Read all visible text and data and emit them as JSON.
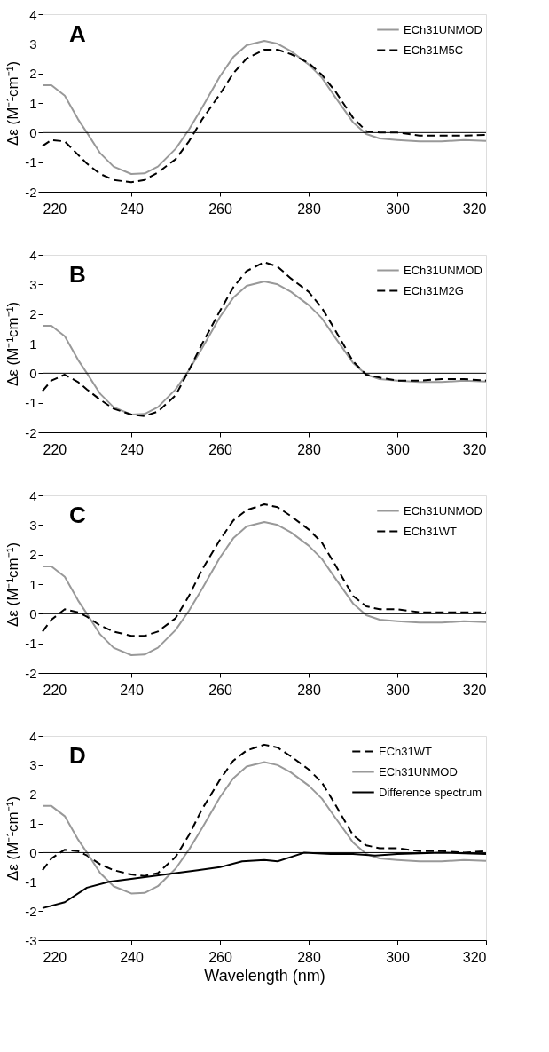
{
  "chart_data": [
    {
      "type": "line",
      "title": "A",
      "ylabel": "Δε (M⁻¹cm⁻¹)",
      "xlim": [
        220,
        320
      ],
      "xticks": [
        220,
        240,
        260,
        280,
        300,
        320
      ],
      "ylim": [
        -2,
        4
      ],
      "yticks": [
        -2,
        -1,
        0,
        1,
        2,
        3,
        4
      ],
      "grid": false,
      "legend": "top right",
      "ref_lines": [
        {
          "axis": "y",
          "value": 0,
          "color": "#000000"
        }
      ],
      "x": [
        220,
        222,
        225,
        228,
        230,
        233,
        236,
        240,
        243,
        246,
        250,
        253,
        256,
        260,
        263,
        266,
        270,
        273,
        276,
        280,
        283,
        286,
        290,
        293,
        296,
        300,
        305,
        310,
        315,
        320
      ],
      "series": [
        {
          "name": "ECh31UNMOD",
          "color": "#999999",
          "line_style": "solid",
          "values": [
            1.6,
            1.6,
            1.25,
            0.45,
            0.0,
            -0.7,
            -1.15,
            -1.4,
            -1.38,
            -1.15,
            -0.55,
            0.1,
            0.85,
            1.9,
            2.55,
            2.95,
            3.1,
            3.0,
            2.75,
            2.3,
            1.85,
            1.2,
            0.35,
            -0.05,
            -0.2,
            -0.25,
            -0.3,
            -0.3,
            -0.25,
            -0.28
          ]
        },
        {
          "name": "ECh31M5C",
          "color": "#000000",
          "line_style": "dashed",
          "values": [
            -0.45,
            -0.25,
            -0.3,
            -0.75,
            -1.05,
            -1.4,
            -1.6,
            -1.68,
            -1.6,
            -1.35,
            -0.9,
            -0.3,
            0.45,
            1.3,
            2.0,
            2.5,
            2.8,
            2.8,
            2.65,
            2.35,
            1.95,
            1.4,
            0.5,
            0.05,
            0.0,
            0.0,
            -0.1,
            -0.1,
            -0.1,
            -0.08
          ]
        }
      ]
    },
    {
      "type": "line",
      "title": "B",
      "ylabel": "Δε (M⁻¹cm⁻¹)",
      "xlim": [
        220,
        320
      ],
      "xticks": [
        220,
        240,
        260,
        280,
        300,
        320
      ],
      "ylim": [
        -2,
        4
      ],
      "yticks": [
        -2,
        -1,
        0,
        1,
        2,
        3,
        4
      ],
      "grid": false,
      "legend": "top right",
      "ref_lines": [
        {
          "axis": "y",
          "value": 0,
          "color": "#000000"
        }
      ],
      "x": [
        220,
        222,
        225,
        228,
        230,
        233,
        236,
        240,
        243,
        246,
        250,
        253,
        256,
        260,
        263,
        266,
        270,
        273,
        276,
        280,
        283,
        286,
        290,
        293,
        296,
        300,
        305,
        310,
        315,
        320
      ],
      "series": [
        {
          "name": "ECh31UNMOD",
          "color": "#999999",
          "line_style": "solid",
          "values": [
            1.6,
            1.6,
            1.25,
            0.45,
            0.0,
            -0.7,
            -1.15,
            -1.4,
            -1.38,
            -1.15,
            -0.55,
            0.1,
            0.85,
            1.9,
            2.55,
            2.95,
            3.1,
            3.0,
            2.75,
            2.3,
            1.85,
            1.2,
            0.35,
            -0.05,
            -0.2,
            -0.25,
            -0.3,
            -0.3,
            -0.25,
            -0.28
          ]
        },
        {
          "name": "ECh31M2G",
          "color": "#000000",
          "line_style": "dashed",
          "values": [
            -0.6,
            -0.25,
            -0.05,
            -0.3,
            -0.55,
            -0.9,
            -1.2,
            -1.4,
            -1.45,
            -1.3,
            -0.75,
            0.1,
            1.0,
            2.1,
            2.9,
            3.45,
            3.75,
            3.6,
            3.2,
            2.75,
            2.2,
            1.45,
            0.4,
            -0.05,
            -0.15,
            -0.25,
            -0.25,
            -0.2,
            -0.2,
            -0.25
          ]
        }
      ]
    },
    {
      "type": "line",
      "title": "C",
      "ylabel": "Δε (M⁻¹cm⁻¹)",
      "xlim": [
        220,
        320
      ],
      "xticks": [
        220,
        240,
        260,
        280,
        300,
        320
      ],
      "ylim": [
        -2,
        4
      ],
      "yticks": [
        -2,
        -1,
        0,
        1,
        2,
        3,
        4
      ],
      "grid": false,
      "legend": "top right",
      "ref_lines": [
        {
          "axis": "y",
          "value": 0,
          "color": "#000000"
        }
      ],
      "x": [
        220,
        222,
        225,
        228,
        230,
        233,
        236,
        240,
        243,
        246,
        250,
        253,
        256,
        260,
        263,
        266,
        270,
        273,
        276,
        280,
        283,
        286,
        290,
        293,
        296,
        300,
        305,
        310,
        315,
        320
      ],
      "series": [
        {
          "name": "ECh31UNMOD",
          "color": "#999999",
          "line_style": "solid",
          "values": [
            1.6,
            1.6,
            1.25,
            0.45,
            0.0,
            -0.7,
            -1.15,
            -1.4,
            -1.38,
            -1.15,
            -0.55,
            0.1,
            0.85,
            1.9,
            2.55,
            2.95,
            3.1,
            3.0,
            2.75,
            2.3,
            1.85,
            1.2,
            0.35,
            -0.05,
            -0.2,
            -0.25,
            -0.3,
            -0.3,
            -0.25,
            -0.28
          ]
        },
        {
          "name": "ECh31WT",
          "color": "#000000",
          "line_style": "dashed",
          "values": [
            -0.6,
            -0.2,
            0.15,
            0.05,
            -0.1,
            -0.4,
            -0.6,
            -0.75,
            -0.75,
            -0.6,
            -0.15,
            0.6,
            1.5,
            2.5,
            3.15,
            3.5,
            3.7,
            3.6,
            3.3,
            2.85,
            2.4,
            1.65,
            0.6,
            0.25,
            0.15,
            0.15,
            0.05,
            0.05,
            0.05,
            0.05
          ]
        }
      ]
    },
    {
      "type": "line",
      "title": "D",
      "xlabel": "Wavelength (nm)",
      "ylabel": "Δε (M⁻¹cm⁻¹)",
      "xlim": [
        220,
        320
      ],
      "xticks": [
        220,
        240,
        260,
        280,
        300,
        320
      ],
      "ylim": [
        -3,
        4
      ],
      "yticks": [
        -3,
        -2,
        -1,
        0,
        1,
        2,
        3,
        4
      ],
      "grid": false,
      "legend": "top right",
      "ref_lines": [
        {
          "axis": "y",
          "value": 0,
          "color": "#000000"
        }
      ],
      "x": [
        220,
        222,
        225,
        228,
        230,
        233,
        236,
        240,
        243,
        246,
        250,
        253,
        256,
        260,
        263,
        266,
        270,
        273,
        276,
        280,
        283,
        286,
        290,
        293,
        296,
        300,
        305,
        310,
        315,
        320
      ],
      "series": [
        {
          "name": "ECh31WT",
          "color": "#000000",
          "line_style": "dashed",
          "values": [
            -0.6,
            -0.2,
            0.1,
            0.05,
            -0.1,
            -0.4,
            -0.6,
            -0.75,
            -0.8,
            -0.7,
            -0.15,
            0.6,
            1.5,
            2.5,
            3.15,
            3.5,
            3.7,
            3.6,
            3.3,
            2.85,
            2.4,
            1.65,
            0.6,
            0.25,
            0.15,
            0.15,
            0.05,
            0.05,
            0.0,
            0.05
          ]
        },
        {
          "name": "ECh31UNMOD",
          "color": "#999999",
          "line_style": "solid",
          "values": [
            1.6,
            1.6,
            1.25,
            0.45,
            0.0,
            -0.7,
            -1.15,
            -1.4,
            -1.38,
            -1.15,
            -0.55,
            0.1,
            0.85,
            1.9,
            2.55,
            2.95,
            3.1,
            3.0,
            2.75,
            2.3,
            1.85,
            1.2,
            0.35,
            -0.05,
            -0.2,
            -0.25,
            -0.3,
            -0.3,
            -0.25,
            -0.28
          ]
        },
        {
          "name": "Difference spectrum",
          "color": "#000000",
          "line_style": "solid",
          "x": [
            220,
            225,
            230,
            235,
            240,
            245,
            250,
            255,
            260,
            265,
            270,
            273,
            276,
            279,
            285,
            290,
            295,
            300,
            310,
            320
          ],
          "values": [
            -1.9,
            -1.7,
            -1.2,
            -1.0,
            -0.9,
            -0.8,
            -0.7,
            -0.6,
            -0.5,
            -0.3,
            -0.25,
            -0.3,
            -0.15,
            0.0,
            -0.05,
            -0.05,
            -0.1,
            -0.05,
            0.0,
            -0.05
          ]
        }
      ]
    }
  ]
}
